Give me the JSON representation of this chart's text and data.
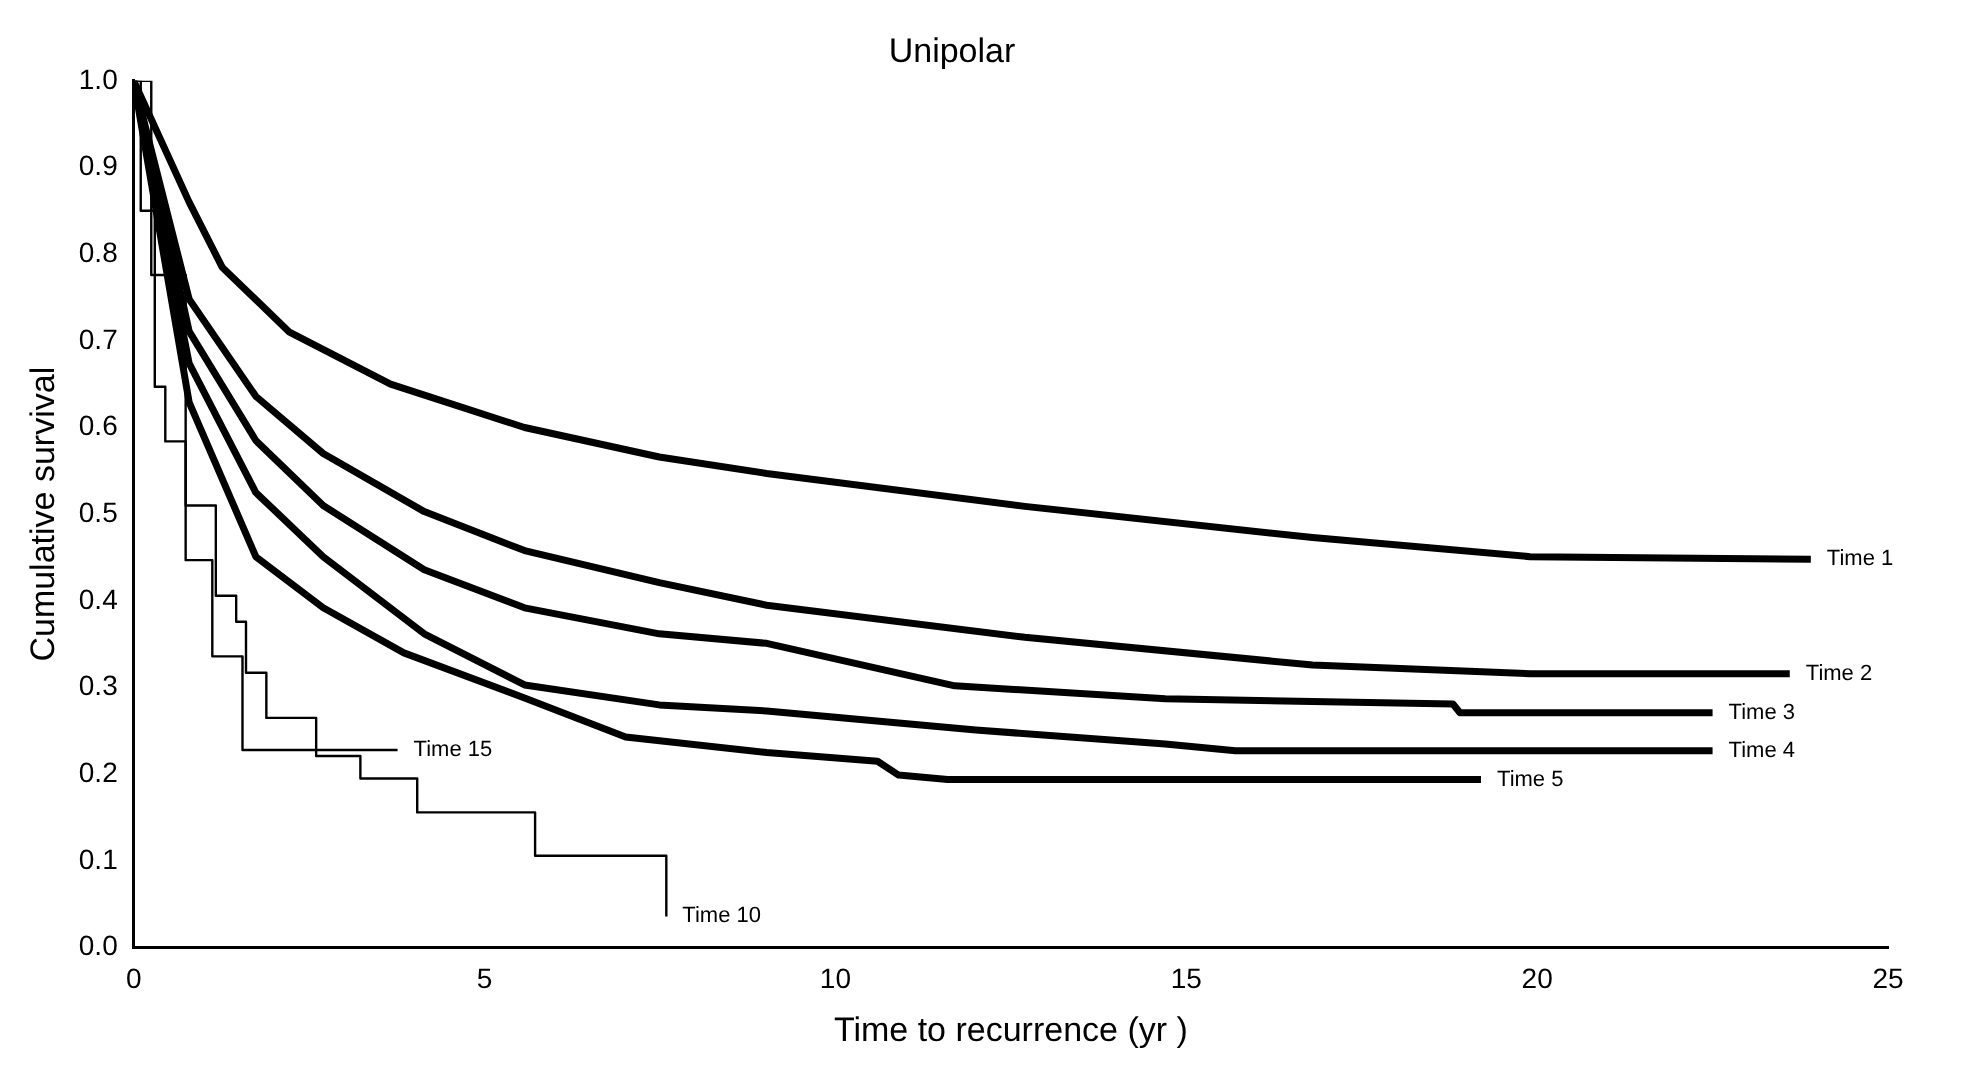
{
  "chart_data": {
    "type": "line",
    "title": "Unipolar",
    "xlabel": "Time to recurrence (yr )",
    "ylabel": "Cumulative survival",
    "xlim": [
      0,
      25
    ],
    "xticks": [
      0,
      5,
      10,
      15,
      20,
      25
    ],
    "ylim": [
      0,
      1
    ],
    "yticks": [
      {
        "value": 0,
        "label": "0.0"
      },
      {
        "value": 0.1,
        "label": "0.1"
      },
      {
        "value": 0.2,
        "label": "0.2"
      },
      {
        "value": 0.3,
        "label": "0.3"
      },
      {
        "value": 0.4,
        "label": "0.4"
      },
      {
        "value": 0.5,
        "label": "0.5"
      },
      {
        "value": 0.6,
        "label": "0.6"
      },
      {
        "value": 0.7,
        "label": "0.7"
      },
      {
        "value": 0.8,
        "label": "0.8"
      },
      {
        "value": 0.9,
        "label": "0.9"
      },
      {
        "value": 1,
        "label": "1.0"
      }
    ],
    "grid": false,
    "legend": false,
    "series": [
      {
        "name": "Time 1",
        "color": "#000000",
        "x": [
          0,
          0.79,
          1.26,
          2.22,
          3.66,
          5.57,
          7.49,
          9.02,
          12.7,
          16.8,
          19.9,
          23.9
        ],
        "values": [
          1.0,
          0.86,
          0.785,
          0.71,
          0.65,
          0.6,
          0.566,
          0.547,
          0.509,
          0.473,
          0.451,
          0.448
        ]
      },
      {
        "name": "Time 2",
        "color": "#000000",
        "x": [
          0,
          0.79,
          1.74,
          2.7,
          4.14,
          5.57,
          7.49,
          9.02,
          12.7,
          16.8,
          19.9,
          23.6
        ],
        "values": [
          1.0,
          0.748,
          0.636,
          0.57,
          0.503,
          0.458,
          0.421,
          0.395,
          0.358,
          0.326,
          0.316,
          0.316
        ]
      },
      {
        "name": "Time 3",
        "color": "#000000",
        "x": [
          0,
          0.79,
          1.74,
          2.7,
          4.14,
          5.57,
          7.49,
          9.02,
          11.7,
          14.7,
          18.8,
          18.9,
          22.5
        ],
        "values": [
          1.0,
          0.711,
          0.585,
          0.51,
          0.436,
          0.392,
          0.362,
          0.351,
          0.302,
          0.287,
          0.281,
          0.271,
          0.271
        ]
      },
      {
        "name": "Time 4",
        "color": "#000000",
        "x": [
          0,
          0.79,
          1.74,
          2.7,
          4.14,
          5.57,
          7.49,
          9.02,
          12.0,
          14.7,
          15.7,
          22.5
        ],
        "values": [
          1.0,
          0.674,
          0.525,
          0.451,
          0.362,
          0.303,
          0.28,
          0.273,
          0.251,
          0.235,
          0.227,
          0.227
        ]
      },
      {
        "name": "Time 5",
        "color": "#000000",
        "x": [
          0,
          0.79,
          1.74,
          2.7,
          3.85,
          5.57,
          7.01,
          9.02,
          10.6,
          10.9,
          11.6,
          19.2
        ],
        "values": [
          1.0,
          0.629,
          0.451,
          0.392,
          0.34,
          0.288,
          0.243,
          0.225,
          0.215,
          0.199,
          0.194,
          0.194
        ]
      },
      {
        "name": "Time 10",
        "type": "step",
        "color": "#000000",
        "x": [
          0,
          0.25,
          0.74,
          1.12,
          1.55,
          2.6,
          3.23,
          4.04,
          5.72,
          7.59
        ],
        "values": [
          1.0,
          0.776,
          0.447,
          0.336,
          0.228,
          0.221,
          0.195,
          0.156,
          0.106,
          0.036
        ]
      },
      {
        "name": "Time 15",
        "type": "step",
        "color": "#000000",
        "x": [
          0,
          0.1,
          0.3,
          0.45,
          0.74,
          1.17,
          1.46,
          1.6,
          1.89,
          2.6,
          3.76
        ],
        "values": [
          1.0,
          0.85,
          0.647,
          0.584,
          0.51,
          0.406,
          0.376,
          0.317,
          0.265,
          0.228,
          0.228
        ]
      }
    ]
  }
}
